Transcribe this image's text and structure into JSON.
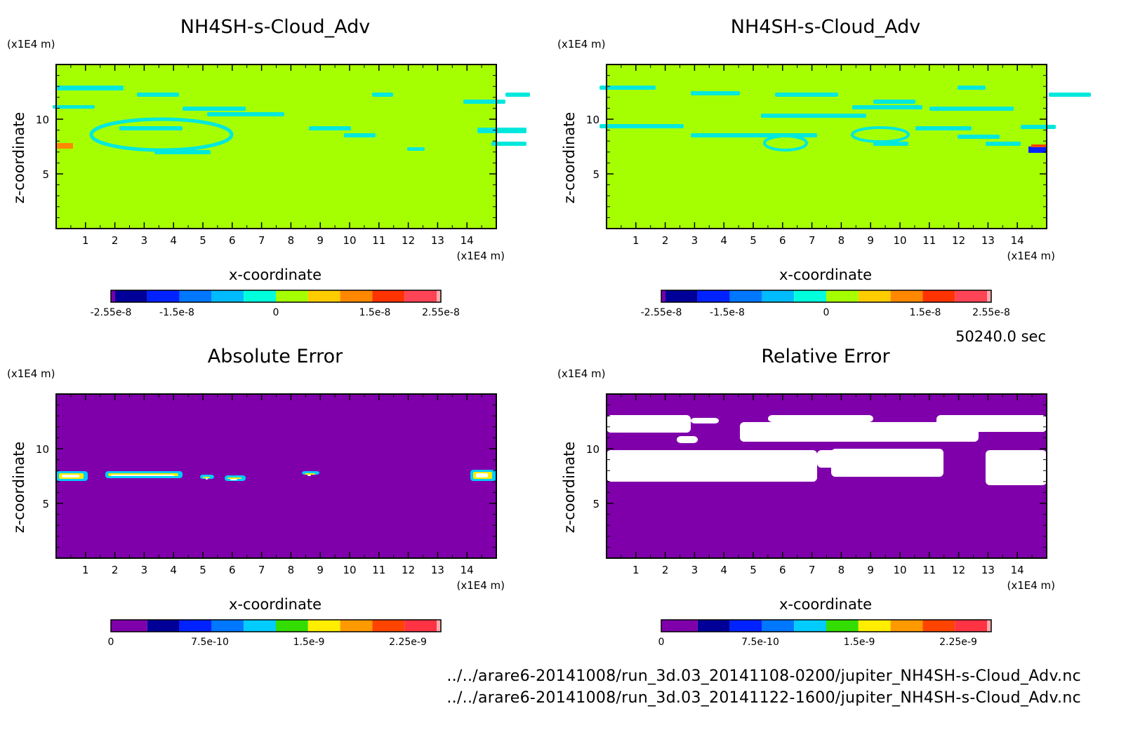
{
  "time_label": "50240.0 sec",
  "files": [
    "../../arare6-20141008/run_3d.03_20141108-0200/jupiter_NH4SH-s-Cloud_Adv.nc",
    "../../arare6-20141008/run_3d.03_20141122-1600/jupiter_NH4SH-s-Cloud_Adv.nc"
  ],
  "chart_data": [
    {
      "type": "heatmap",
      "title": "NH4SH-s-Cloud_Adv",
      "xlabel": "x-coordinate",
      "ylabel": "z-coordinate",
      "x_unit": "(x1E4 m)",
      "y_unit": "(x1E4 m)",
      "xlim": [
        0,
        15
      ],
      "ylim": [
        0,
        15
      ],
      "xticks": [
        "1",
        "2",
        "3",
        "4",
        "5",
        "6",
        "7",
        "8",
        "9",
        "10",
        "11",
        "12",
        "13",
        "14"
      ],
      "yticks": [
        "5",
        "10"
      ],
      "background_color": "#a6ff00",
      "colorbar": {
        "colors": [
          "#000099",
          "#0022ff",
          "#0077ff",
          "#00bbff",
          "#00ffdd",
          "#a6ff00",
          "#ffcc00",
          "#ff8800",
          "#ff3300",
          "#ff4455"
        ],
        "labels": [
          "-2.55e-8",
          "-1.5e-8",
          "0",
          "1.5e-8",
          "2.55e-8"
        ]
      }
    },
    {
      "type": "heatmap",
      "title": "NH4SH-s-Cloud_Adv",
      "xlabel": "x-coordinate",
      "ylabel": "z-coordinate",
      "x_unit": "(x1E4 m)",
      "y_unit": "(x1E4 m)",
      "xlim": [
        0,
        15
      ],
      "ylim": [
        0,
        15
      ],
      "xticks": [
        "1",
        "2",
        "3",
        "4",
        "5",
        "6",
        "7",
        "8",
        "9",
        "10",
        "11",
        "12",
        "13",
        "14"
      ],
      "yticks": [
        "5",
        "10"
      ],
      "background_color": "#a6ff00",
      "colorbar": {
        "colors": [
          "#000099",
          "#0022ff",
          "#0077ff",
          "#00bbff",
          "#00ffdd",
          "#a6ff00",
          "#ffcc00",
          "#ff8800",
          "#ff3300",
          "#ff4455"
        ],
        "labels": [
          "-2.55e-8",
          "-1.5e-8",
          "0",
          "1.5e-8",
          "2.55e-8"
        ]
      }
    },
    {
      "type": "heatmap",
      "title": "Absolute Error",
      "xlabel": "x-coordinate",
      "ylabel": "z-coordinate",
      "x_unit": "(x1E4 m)",
      "y_unit": "(x1E4 m)",
      "xlim": [
        0,
        15
      ],
      "ylim": [
        0,
        15
      ],
      "xticks": [
        "1",
        "2",
        "3",
        "4",
        "5",
        "6",
        "7",
        "8",
        "9",
        "10",
        "11",
        "12",
        "13",
        "14"
      ],
      "yticks": [
        "5",
        "10"
      ],
      "background_color": "#7f00aa",
      "colorbar": {
        "colors": [
          "#7f00aa",
          "#000099",
          "#0022ff",
          "#0077ff",
          "#00ccff",
          "#33dd00",
          "#ffee00",
          "#ff9900",
          "#ff4400",
          "#ff3344"
        ],
        "labels": [
          "0",
          "7.5e-10",
          "1.5e-9",
          "2.25e-9"
        ]
      }
    },
    {
      "type": "heatmap",
      "title": "Relative Error",
      "xlabel": "x-coordinate",
      "ylabel": "z-coordinate",
      "x_unit": "(x1E4 m)",
      "y_unit": "(x1E4 m)",
      "xlim": [
        0,
        15
      ],
      "ylim": [
        0,
        15
      ],
      "xticks": [
        "1",
        "2",
        "3",
        "4",
        "5",
        "6",
        "7",
        "8",
        "9",
        "10",
        "11",
        "12",
        "13",
        "14"
      ],
      "yticks": [
        "5",
        "10"
      ],
      "background_color": "#7f00aa",
      "colorbar": {
        "colors": [
          "#7f00aa",
          "#000099",
          "#0022ff",
          "#0077ff",
          "#00ccff",
          "#33dd00",
          "#ffee00",
          "#ff9900",
          "#ff4400",
          "#ff3344"
        ],
        "labels": [
          "0",
          "7.5e-10",
          "1.5e-9",
          "2.25e-9"
        ]
      }
    }
  ]
}
